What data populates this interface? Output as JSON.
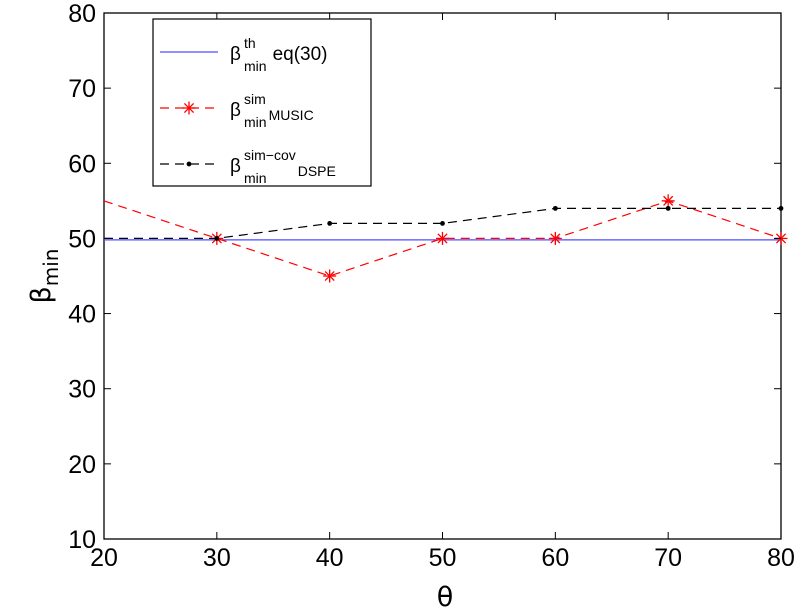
{
  "chart_data": {
    "type": "line",
    "xlabel": "θ",
    "ylabel_base": "β",
    "ylabel_sub": "min",
    "xlim": [
      20,
      80
    ],
    "ylim": [
      10,
      80
    ],
    "xticks": [
      20,
      30,
      40,
      50,
      60,
      70,
      80
    ],
    "yticks": [
      10,
      20,
      30,
      40,
      50,
      60,
      70,
      80
    ],
    "grid": false,
    "legend_position": "top-left",
    "series": [
      {
        "legend_base": "β",
        "legend_sup": "th",
        "legend_sub": "min",
        "legend_suffix": "eq(30)",
        "color": "#4d4dff",
        "style": "solid",
        "marker": "none",
        "x": [
          20,
          80
        ],
        "y": [
          49.8,
          49.8
        ]
      },
      {
        "legend_base": "β",
        "legend_sup": "sim",
        "legend_sub": "min",
        "legend_suffix": "MUSIC",
        "color": "#ff0000",
        "style": "dashed",
        "marker": "asterisk",
        "x": [
          20,
          30,
          40,
          50,
          60,
          70,
          80
        ],
        "y": [
          55,
          50,
          45,
          50,
          50,
          55,
          50
        ],
        "marker_x": [
          30,
          40,
          50,
          60,
          70,
          80
        ]
      },
      {
        "legend_base": "β",
        "legend_sup": "sim−cov",
        "legend_sub": "min",
        "legend_suffix": "DSPE",
        "color": "#000000",
        "style": "dashed",
        "marker": "dot",
        "x": [
          20,
          30,
          40,
          50,
          60,
          70,
          80
        ],
        "y": [
          50,
          50,
          52,
          52,
          54,
          54,
          54
        ],
        "marker_x": [
          30,
          40,
          50,
          60,
          70,
          80
        ]
      }
    ]
  }
}
